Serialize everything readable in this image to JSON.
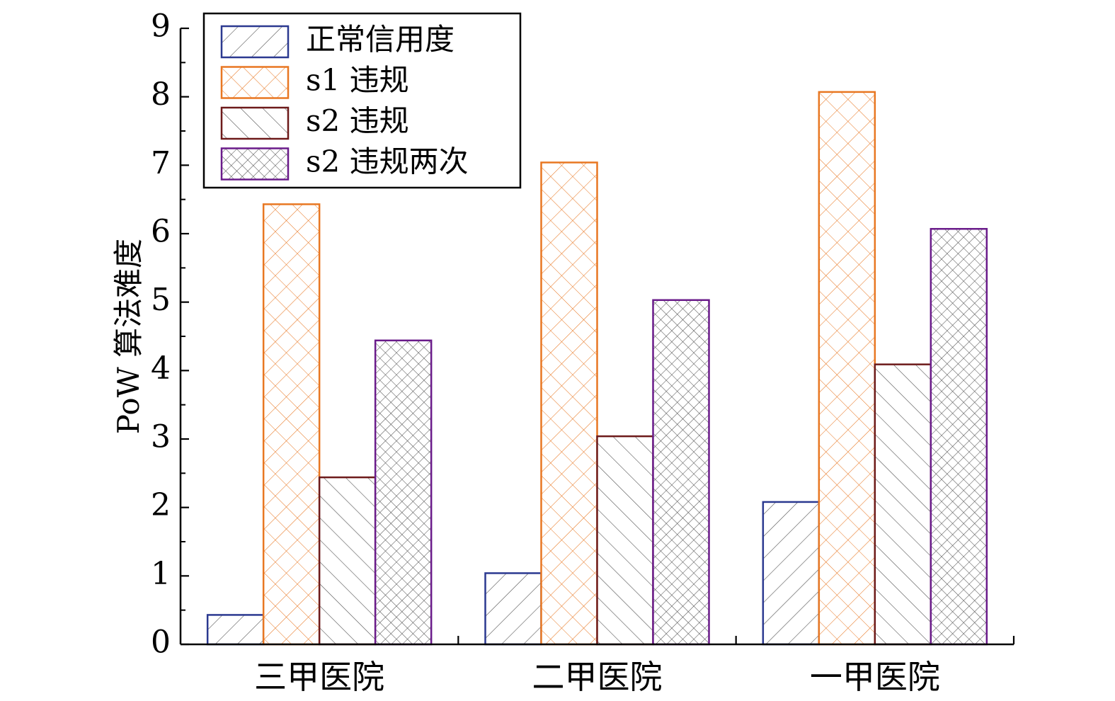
{
  "chart_data": {
    "type": "bar",
    "categories": [
      "三甲医院",
      "二甲医院",
      "一甲医院"
    ],
    "series": [
      {
        "name": "正常信用度",
        "values": [
          0.43,
          1.04,
          2.08
        ],
        "color": "#2b3990",
        "pattern": "diag-right"
      },
      {
        "name": "s1 违规",
        "values": [
          6.43,
          7.04,
          8.07
        ],
        "color": "#e87722",
        "pattern": "cross"
      },
      {
        "name": "s2 违规",
        "values": [
          2.44,
          3.04,
          4.09
        ],
        "color": "#6d1a1a",
        "pattern": "diag-left"
      },
      {
        "name": "s2 违规两次",
        "values": [
          4.44,
          5.03,
          6.07
        ],
        "color": "#6a1b8a",
        "pattern": "fine-cross"
      }
    ],
    "ylabel": "PoW 算法难度",
    "xlabel": "",
    "ylim": [
      0,
      9
    ],
    "yticks": [
      "0",
      "1",
      "2",
      "3",
      "4",
      "5",
      "6",
      "7",
      "8",
      "9"
    ],
    "legend": "top-left",
    "grid": false
  }
}
